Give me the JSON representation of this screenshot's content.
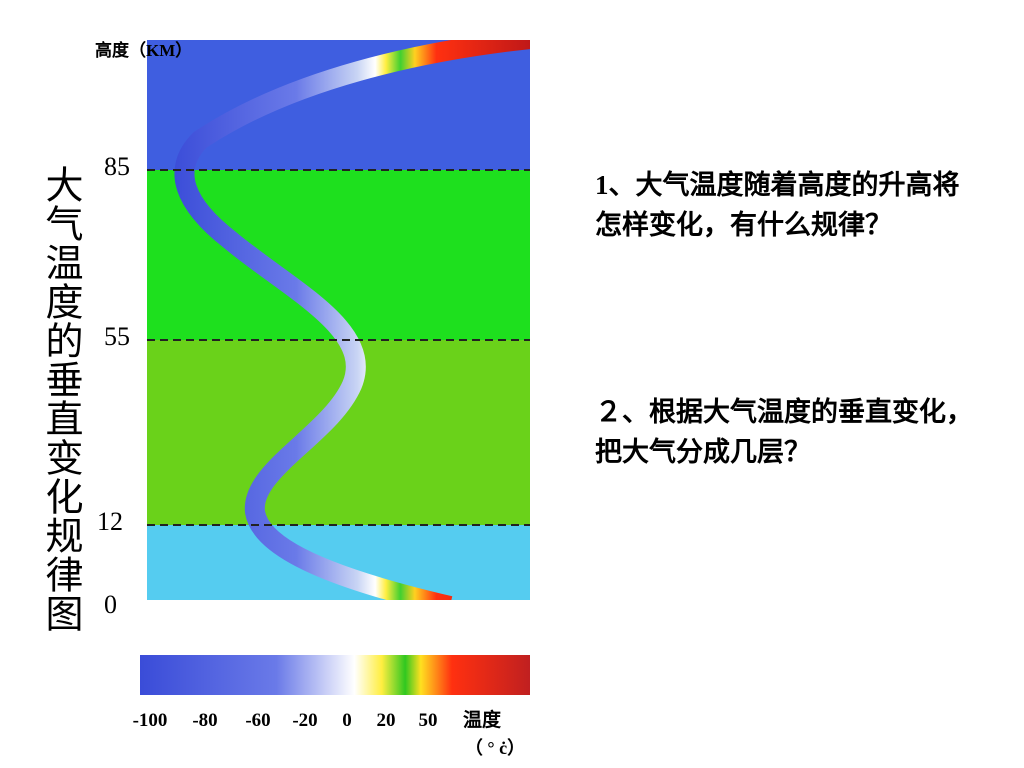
{
  "title": "大气温度的垂直变化规律图",
  "diagram": {
    "axis_label": "高度（KM）",
    "altitudes": [
      "85",
      "55",
      "12",
      "0"
    ],
    "scale_labels": [
      "-100",
      "-80",
      "-60",
      "-20",
      "0",
      "20",
      "50",
      "温度"
    ],
    "unit": "（ ° ċ）"
  },
  "questions": [
    "1、大气温度随着高度的升高将怎样变化，有什么规律？",
    "２、根据大气温度的垂直变化，把大气分成几层？"
  ]
}
